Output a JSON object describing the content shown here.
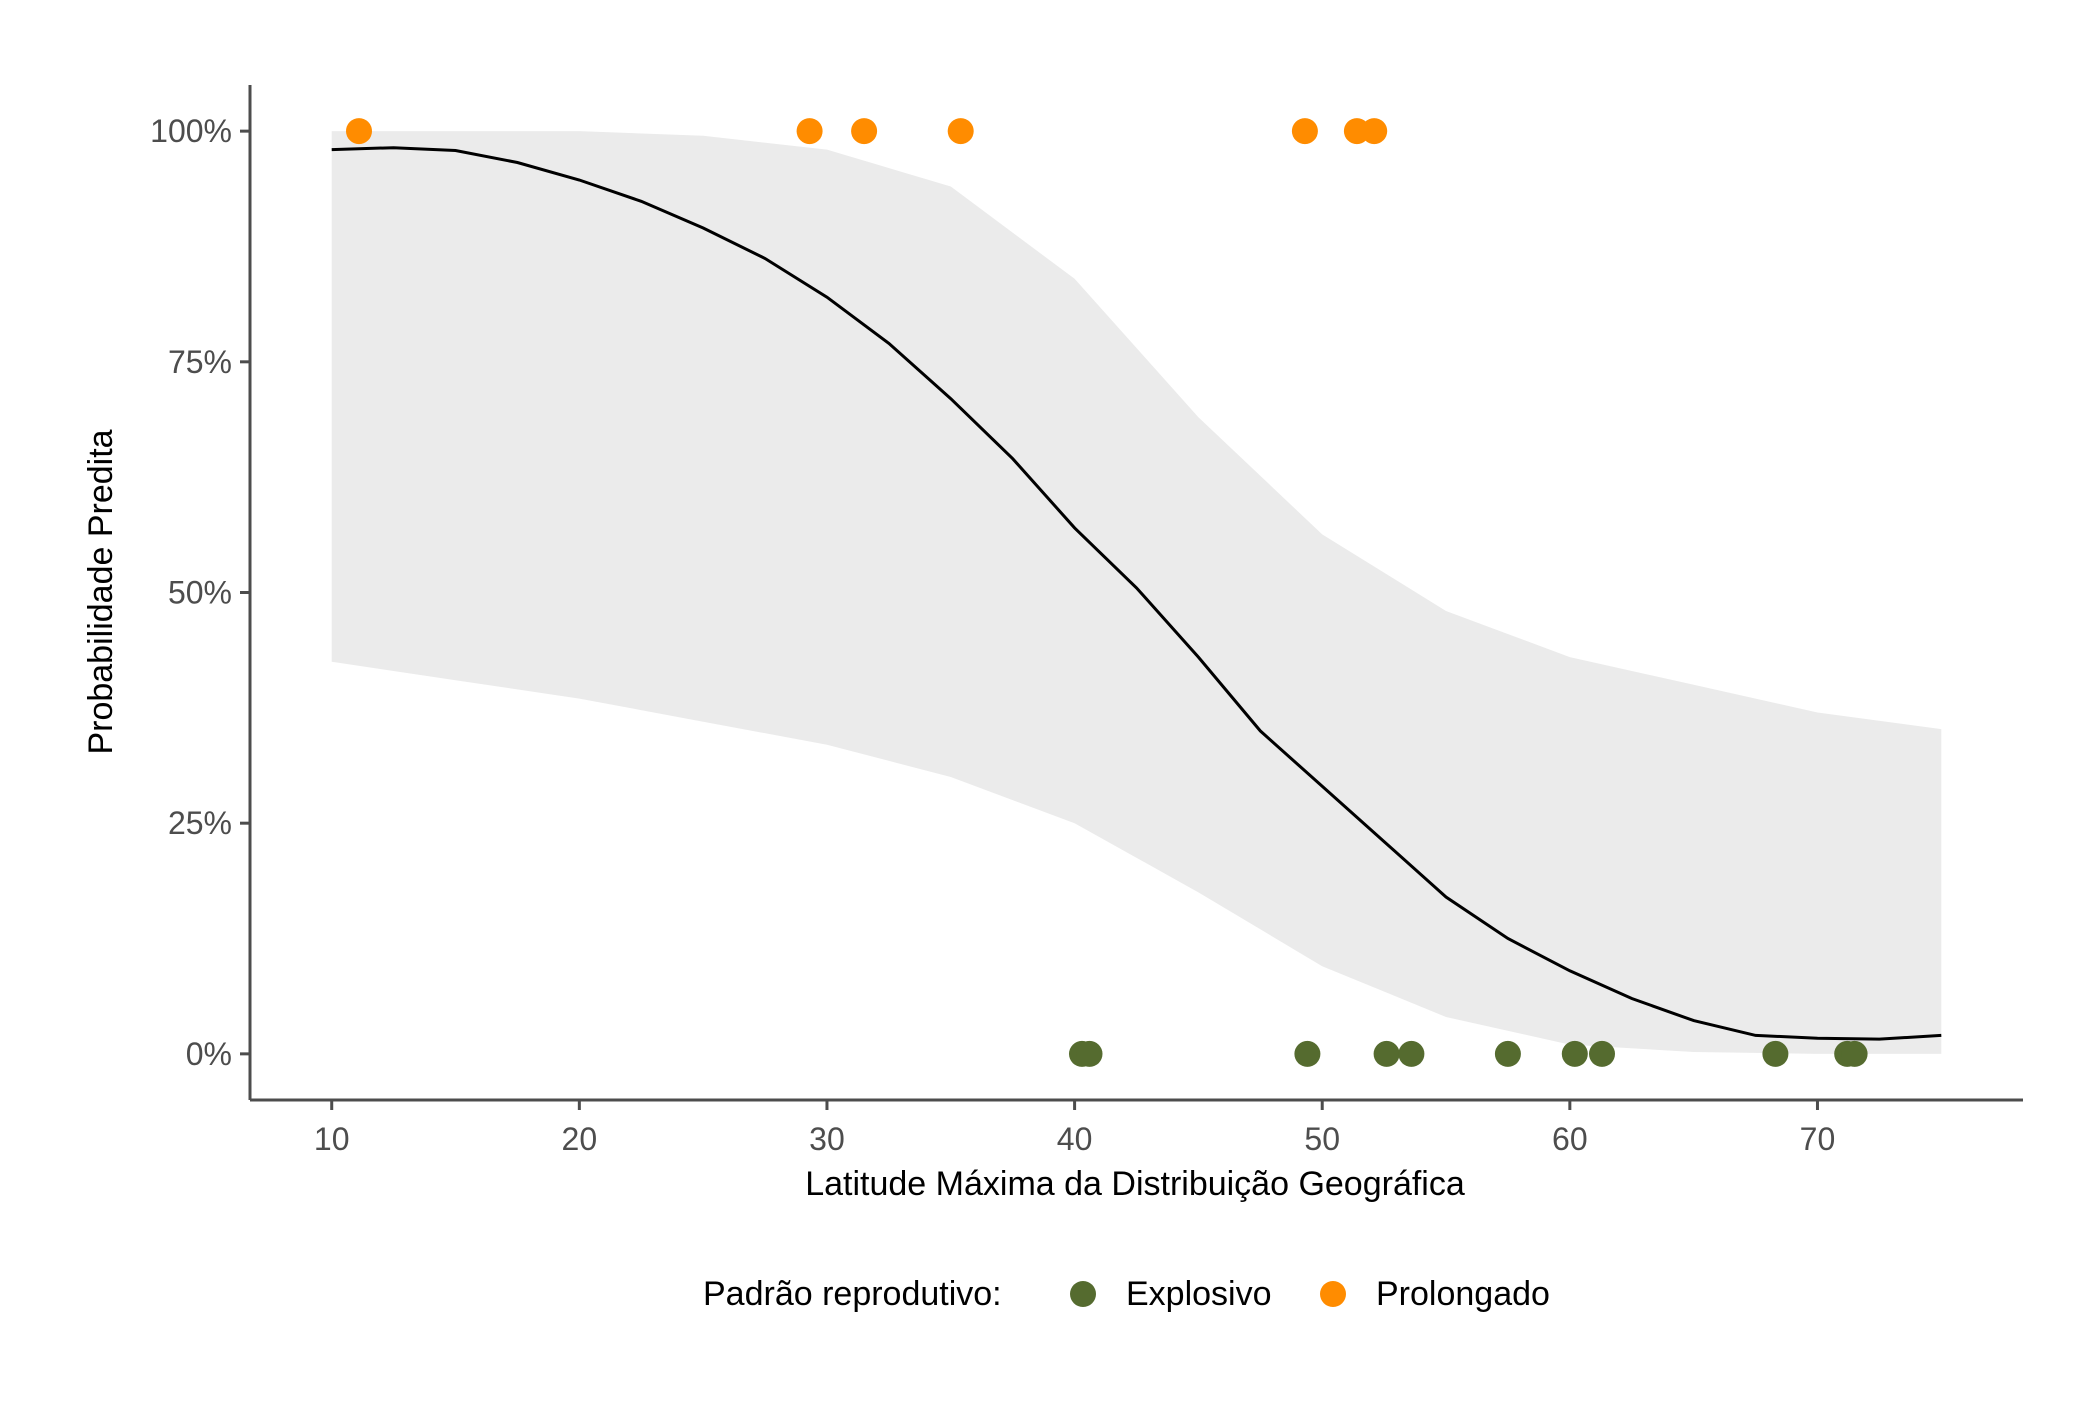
{
  "chart_data": {
    "type": "scatter",
    "xlabel": "Latitude Máxima da Distribuição Geográfica",
    "ylabel": "Probabilidade Predita",
    "xlim": [
      6.7,
      78.3
    ],
    "ylim": [
      -0.05,
      1.05
    ],
    "x_ticks": [
      10,
      20,
      30,
      40,
      50,
      60,
      70
    ],
    "y_ticks": [
      {
        "value": 0,
        "label": "0%"
      },
      {
        "value": 0.25,
        "label": "25%"
      },
      {
        "value": 0.5,
        "label": "50%"
      },
      {
        "value": 0.75,
        "label": "75%"
      },
      {
        "value": 1,
        "label": "100%"
      }
    ],
    "grid": false,
    "legend": {
      "title": "Padrão reprodutivo:",
      "position": "bottom",
      "entries": [
        {
          "label": "Explosivo",
          "color": "#556B2F"
        },
        {
          "label": "Prolongado",
          "color": "#FF8C00"
        }
      ]
    },
    "series": [
      {
        "name": "Explosivo",
        "color": "#556B2F",
        "x": [
          40.3,
          40.6,
          49.4,
          52.6,
          53.6,
          57.5,
          60.2,
          61.3,
          68.3,
          71.2,
          71.5
        ],
        "y": [
          0,
          0,
          0,
          0,
          0,
          0,
          0,
          0,
          0,
          0,
          0
        ]
      },
      {
        "name": "Prolongado",
        "color": "#FF8C00",
        "x": [
          11.1,
          29.3,
          31.5,
          35.4,
          49.3,
          51.4,
          52.1
        ],
        "y": [
          1,
          1,
          1,
          1,
          1,
          1,
          1
        ]
      }
    ],
    "fit_line": {
      "color": "#000000",
      "x": [
        10,
        12.5,
        15,
        17.5,
        20,
        22.5,
        25,
        27.5,
        30,
        32.5,
        35,
        37.5,
        40,
        42.5,
        45,
        47.5,
        50,
        52.5,
        55,
        57.5,
        60,
        62.5,
        65,
        67.5,
        70,
        72.5,
        75
      ],
      "y": [
        0.98,
        0.982,
        0.979,
        0.966,
        0.947,
        0.924,
        0.895,
        0.862,
        0.82,
        0.77,
        0.71,
        0.645,
        0.57,
        0.505,
        0.43,
        0.35,
        0.29,
        0.23,
        0.17,
        0.125,
        0.09,
        0.06,
        0.036,
        0.02,
        0.017,
        0.016,
        0.02
      ]
    },
    "confidence_band": {
      "color": "#EBEBEB",
      "x": [
        10,
        15,
        20,
        25,
        30,
        35,
        40,
        45,
        50,
        55,
        60,
        65,
        70,
        75
      ],
      "lower": [
        0.425,
        0.405,
        0.385,
        0.36,
        0.335,
        0.3,
        0.25,
        0.175,
        0.095,
        0.04,
        0.01,
        0.002,
        0.0,
        0.0
      ],
      "upper": [
        1.0,
        1.0,
        1.0,
        0.995,
        0.98,
        0.94,
        0.84,
        0.69,
        0.563,
        0.48,
        0.43,
        0.4,
        0.37,
        0.352
      ]
    }
  }
}
